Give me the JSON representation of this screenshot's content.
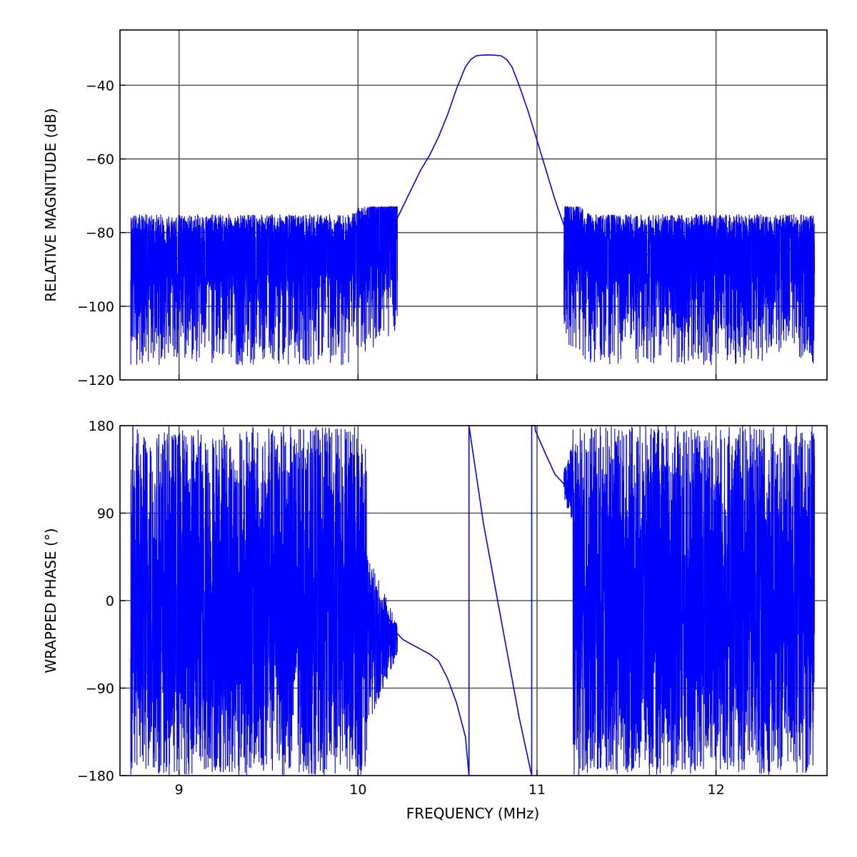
{
  "chart_data": [
    {
      "type": "line",
      "ylabel": "RELATIVE MAGNITUDE (dB)",
      "xlim": [
        8.67,
        12.62
      ],
      "ylim": [
        -120,
        -25
      ],
      "xticks": [
        9,
        10,
        11,
        12
      ],
      "yticks": [
        -120,
        -100,
        -80,
        -60,
        -40
      ],
      "ytick_labels": [
        "−120",
        "−100",
        "−80",
        "−60",
        "−40"
      ],
      "grid": true,
      "color": "#0000ff",
      "series": [
        {
          "x": [
            8.73,
            9.0,
            9.5,
            9.9,
            10.05,
            10.15,
            10.2,
            10.25,
            10.3,
            10.35,
            10.4,
            10.45,
            10.5,
            10.55,
            10.6,
            10.63,
            10.66,
            10.7,
            10.75,
            10.8,
            10.83,
            10.86,
            10.9,
            10.95,
            11.0,
            11.05,
            11.1,
            11.15,
            11.2,
            11.3,
            11.6,
            12.0,
            12.3,
            12.55
          ],
          "y": [
            -87,
            -87,
            -87,
            -87,
            -86,
            -83,
            -78,
            -73,
            -68,
            -63,
            -59,
            -54,
            -48,
            -41,
            -35,
            -33,
            -32,
            -31.8,
            -31.8,
            -32,
            -33,
            -35,
            -40,
            -47,
            -55,
            -63,
            -71,
            -78,
            -84,
            -86,
            -86,
            -86,
            -85,
            -84
          ]
        }
      ]
    },
    {
      "type": "line",
      "xlabel": "FREQUENCY (MHz)",
      "ylabel": "WRAPPED PHASE (°)",
      "xlim": [
        8.67,
        12.62
      ],
      "ylim": [
        -180,
        180
      ],
      "xticks": [
        9,
        10,
        11,
        12
      ],
      "xtick_labels": [
        "9",
        "10",
        "11",
        "12"
      ],
      "yticks": [
        -180,
        -90,
        0,
        90,
        180
      ],
      "ytick_labels": [
        "−180",
        "−90",
        "0",
        "90",
        "180"
      ],
      "grid": true,
      "color": "#0000ff",
      "series": [
        {
          "x": [
            10.15,
            10.2,
            10.25,
            10.3,
            10.35,
            10.4,
            10.45,
            10.5,
            10.55,
            10.6,
            10.62,
            10.62,
            10.7,
            10.8,
            10.9,
            10.97,
            10.97,
            10.99,
            10.99,
            11.05,
            11.1,
            11.15
          ],
          "y": [
            -10,
            -30,
            -40,
            -45,
            -50,
            -55,
            -62,
            -80,
            -105,
            -140,
            -180,
            180,
            80,
            -20,
            -120,
            -180,
            180,
            180,
            175,
            150,
            130,
            120
          ]
        }
      ]
    }
  ]
}
